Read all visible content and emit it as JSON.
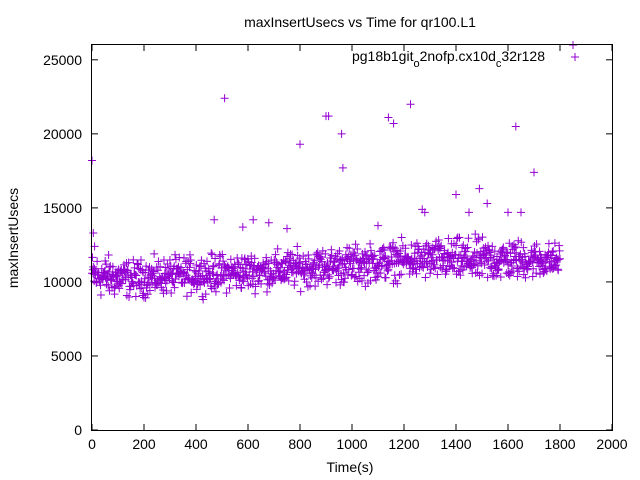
{
  "chart_data": {
    "type": "scatter",
    "title": "maxInsertUsecs vs Time for qr100.L1",
    "xlabel": "Time(s)",
    "ylabel": "maxInsertUsecs",
    "xlim": [
      0,
      2000
    ],
    "ylim": [
      0,
      26000
    ],
    "x_ticks": [
      0,
      200,
      400,
      600,
      800,
      1000,
      1200,
      1400,
      1600,
      1800,
      2000
    ],
    "y_ticks": [
      0,
      5000,
      10000,
      15000,
      20000,
      25000
    ],
    "grid": false,
    "legend_position": "top-right",
    "marker": "+",
    "color": "#9400D3",
    "series": [
      {
        "name": "pg18b1git_o2nofp.cx10d_c32r128",
        "points": [
          [
            0,
            18200
          ],
          [
            5,
            13300
          ],
          [
            10,
            12400
          ],
          [
            1850,
            26000
          ],
          [
            510,
            22400
          ],
          [
            900,
            21200
          ],
          [
            910,
            21200
          ],
          [
            800,
            19300
          ],
          [
            960,
            20000
          ],
          [
            965,
            17700
          ],
          [
            1140,
            21100
          ],
          [
            1160,
            20700
          ],
          [
            1225,
            22000
          ],
          [
            1630,
            20500
          ],
          [
            1700,
            17400
          ],
          [
            1400,
            15900
          ],
          [
            1490,
            16300
          ],
          [
            1520,
            15300
          ],
          [
            1270,
            14900
          ],
          [
            1280,
            14700
          ],
          [
            1450,
            14700
          ],
          [
            1600,
            14700
          ],
          [
            1650,
            14700
          ],
          [
            470,
            14200
          ],
          [
            620,
            14200
          ],
          [
            680,
            14000
          ],
          [
            580,
            13700
          ],
          [
            750,
            13600
          ],
          [
            1100,
            13800
          ]
        ],
        "band": [
          [
            0,
            8500,
            12400
          ],
          [
            150,
            8600,
            11800
          ],
          [
            300,
            8800,
            12000
          ],
          [
            450,
            8900,
            12200
          ],
          [
            600,
            9100,
            12300
          ],
          [
            750,
            9200,
            12500
          ],
          [
            900,
            9400,
            12700
          ],
          [
            1050,
            9500,
            12900
          ],
          [
            1200,
            9800,
            13100
          ],
          [
            1350,
            9700,
            13300
          ],
          [
            1500,
            9500,
            13400
          ],
          [
            1650,
            9800,
            13200
          ],
          [
            1800,
            10000,
            12900
          ]
        ],
        "band_count": 1100
      }
    ]
  }
}
